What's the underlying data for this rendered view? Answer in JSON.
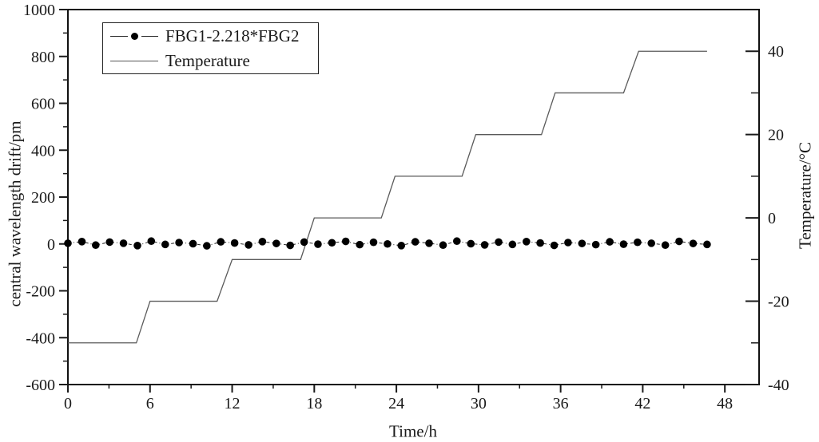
{
  "colors": {
    "axis": "#1a1a1a",
    "frame": "#111111",
    "temperature_line": "#5a5a5a",
    "fbg_line": "#222222",
    "marker_fill": "#000000",
    "background": "#ffffff"
  },
  "chart_data": {
    "type": "line",
    "title": "",
    "xlabel": "Time/h",
    "ylabel_left": "central wavelength drift/pm",
    "ylabel_right": "Temperature/°C",
    "xlim": [
      0,
      50.5
    ],
    "ylim_left": [
      -600,
      1000
    ],
    "ylim_right": [
      -40,
      50
    ],
    "x_ticks": [
      0,
      6,
      12,
      18,
      24,
      30,
      36,
      42,
      48
    ],
    "x_minor_step": 3,
    "y_left_ticks": [
      -600,
      -400,
      -200,
      0,
      200,
      400,
      600,
      800,
      1000
    ],
    "y_left_minor_step": 100,
    "y_right_ticks": [
      -40,
      -20,
      0,
      20,
      40
    ],
    "y_right_minor_step": 10,
    "grid": "off",
    "legend_position": "upper-left-inside",
    "legend": [
      {
        "label": "FBG1-2.218*FBG2",
        "marker": "dot-with-dashdot-line"
      },
      {
        "label": "Temperature",
        "marker": "solid-line"
      }
    ],
    "series": [
      {
        "name": "FBG1-2.218*FBG2",
        "axis": "left",
        "style": "dashdot-line-with-dots",
        "x": [
          0,
          1.02,
          2.03,
          3.05,
          4.06,
          5.08,
          6.09,
          7.11,
          8.12,
          9.14,
          10.15,
          11.17,
          12.18,
          13.2,
          14.21,
          15.23,
          16.24,
          17.26,
          18.27,
          19.29,
          20.3,
          21.32,
          22.33,
          23.35,
          24.36,
          25.38,
          26.39,
          27.41,
          28.42,
          29.44,
          30.45,
          31.47,
          32.48,
          33.5,
          34.51,
          35.53,
          36.54,
          37.56,
          38.57,
          39.59,
          40.6,
          41.62,
          42.63,
          43.65,
          44.66,
          45.68,
          46.7
        ],
        "y": [
          3,
          10,
          -5,
          8,
          3,
          -7,
          12,
          -2,
          6,
          1,
          -8,
          9,
          4,
          -4,
          10,
          2,
          -6,
          8,
          -1,
          5,
          11,
          -3,
          7,
          0,
          -7,
          9,
          3,
          -5,
          12,
          1,
          -4,
          8,
          -2,
          10,
          4,
          -6,
          6,
          2,
          -3,
          9,
          -1,
          7,
          3,
          -5,
          11,
          2,
          -2
        ]
      },
      {
        "name": "Temperature",
        "axis": "right",
        "style": "solid-line",
        "x": [
          0,
          5,
          6,
          10.9,
          12,
          17,
          18,
          22.9,
          23.9,
          28.8,
          29.8,
          34.6,
          35.6,
          40.6,
          41.7,
          46.7
        ],
        "y": [
          -30,
          -30,
          -20,
          -20,
          -10,
          -10,
          0,
          0,
          10,
          10,
          20,
          20,
          30,
          30,
          40,
          40
        ]
      }
    ]
  }
}
